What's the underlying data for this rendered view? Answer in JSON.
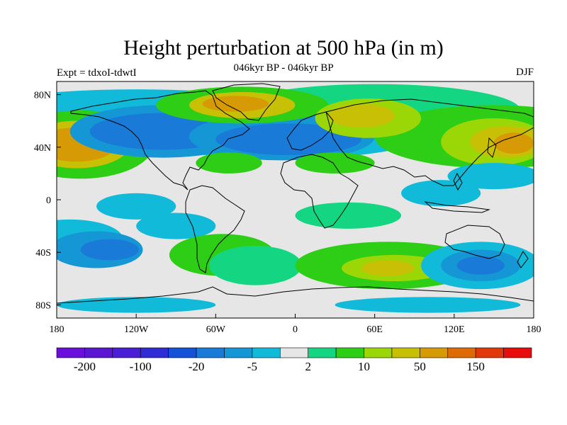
{
  "title": "Height perturbation at 500 hPa (in m)",
  "subtitle": "046kyr BP - 046kyr BP",
  "left_label": "Expt = tdxoI-tdwtI",
  "right_label": "DJF",
  "chart_data": {
    "type": "heatmap",
    "title": "Height perturbation at 500 hPa (in m)",
    "subtitle": "046kyr BP - 046kyr BP",
    "xlim": [
      -180,
      180
    ],
    "ylim": [
      -90,
      90
    ],
    "x_ticks": [
      "180",
      "120W",
      "60W",
      "0",
      "60E",
      "120E",
      "180"
    ],
    "y_ticks": [
      "80N",
      "40N",
      "0",
      "40S",
      "80S"
    ],
    "colorbar_labels": [
      "-200",
      "-100",
      "-20",
      "-5",
      "2",
      "10",
      "50",
      "150"
    ],
    "colors": [
      "#6a0fd9",
      "#5a16d0",
      "#4a1ed2",
      "#2f2cd6",
      "#1450d8",
      "#1a7ad8",
      "#1597d6",
      "#11bad8",
      "#e6e6e6",
      "#14d682",
      "#2ecd16",
      "#9bd607",
      "#c8c004",
      "#d69a04",
      "#dd6a04",
      "#e0380a",
      "#e80c0c"
    ],
    "regions": [
      {
        "name": "north pacific high",
        "level": 13,
        "lon": -162,
        "lat": 42
      },
      {
        "name": "north pacific ring",
        "level": 11,
        "lon": -150,
        "lat": 45
      },
      {
        "name": "north america low",
        "level": 5,
        "lon": -100,
        "lat": 53
      },
      {
        "name": "north atlantic low",
        "level": 5,
        "lon": 0,
        "lat": 48
      },
      {
        "name": "greenland high",
        "level": 13,
        "lon": -40,
        "lat": 72
      },
      {
        "name": "siberia high",
        "level": 12,
        "lon": 55,
        "lat": 62
      },
      {
        "name": "east asia high",
        "level": 13,
        "lon": 155,
        "lat": 42
      },
      {
        "name": "southern indian ocean high",
        "level": 12,
        "lon": 70,
        "lat": -50
      },
      {
        "name": "australia low",
        "level": 5,
        "lon": 140,
        "lat": -50
      }
    ]
  }
}
